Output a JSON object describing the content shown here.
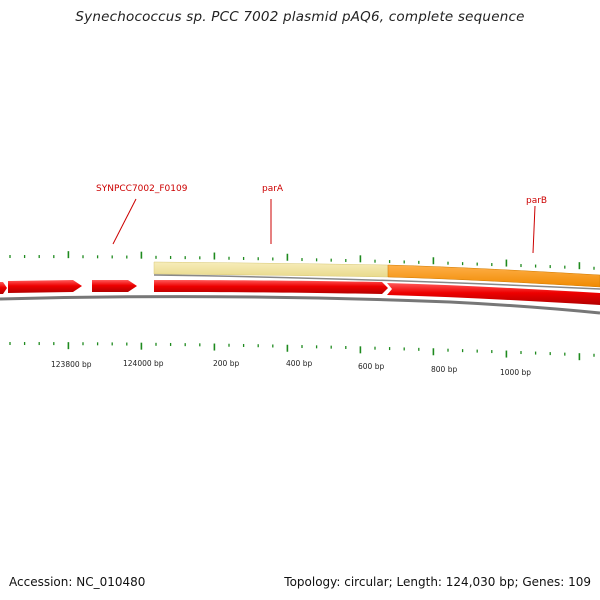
{
  "title": "Synechococcus sp. PCC 7002 plasmid pAQ6, complete sequence",
  "accession": "Accession: NC_010480",
  "summary": "Topology: circular; Length: 124,030 bp; Genes: 109",
  "gene_labels": [
    "SYNPCC7002_F0109",
    "parA",
    "parB"
  ],
  "scale_labels": [
    "123800 bp",
    "124000 bp",
    "200 bp",
    "400 bp",
    "600 bp",
    "800 bp",
    "1000 bp"
  ],
  "colors": {
    "cds_forward": "#ee0000",
    "pale_gene": "#f2e6a0",
    "orange_gene": "#ff9a1a",
    "backbone": "#777777",
    "tick": "#1e8a1e",
    "label": "#cc0000"
  }
}
